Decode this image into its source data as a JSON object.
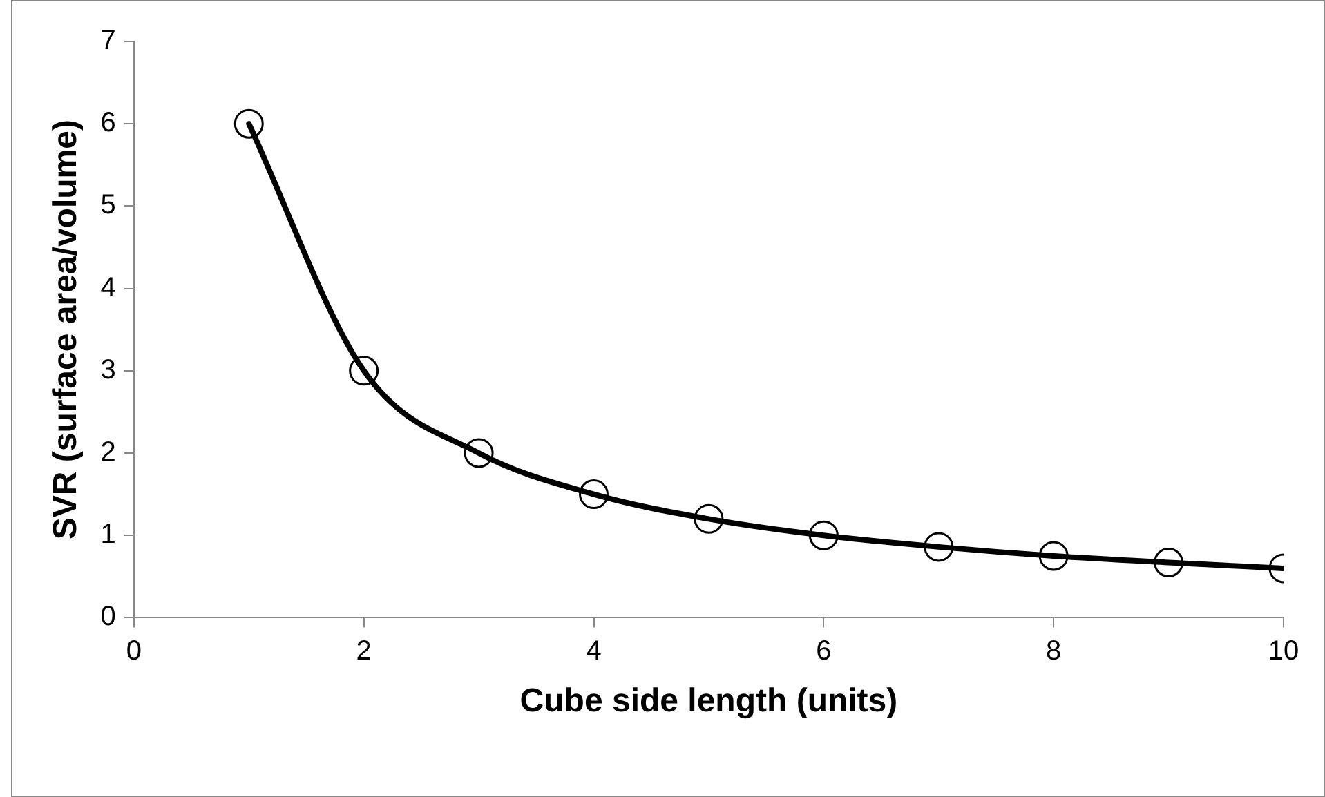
{
  "chart_data": {
    "type": "line",
    "xlabel": "Cube side length (units)",
    "ylabel": "SVR (surface area/volume)",
    "x": [
      1,
      2,
      3,
      4,
      5,
      6,
      7,
      8,
      9,
      10
    ],
    "series": [
      {
        "color": "#000000",
        "values": [
          6,
          3,
          2,
          1.5,
          1.2,
          1,
          0.86,
          0.75,
          0.67,
          0.6
        ]
      }
    ],
    "xlim": [
      0,
      10
    ],
    "xticks": [
      0,
      2,
      4,
      6,
      8,
      10
    ],
    "ylim": [
      0,
      7
    ],
    "yticks": [
      0,
      1,
      2,
      3,
      4,
      5,
      6,
      7
    ],
    "grid": false,
    "legend": false,
    "marker": "circle",
    "line_style": "solid"
  }
}
